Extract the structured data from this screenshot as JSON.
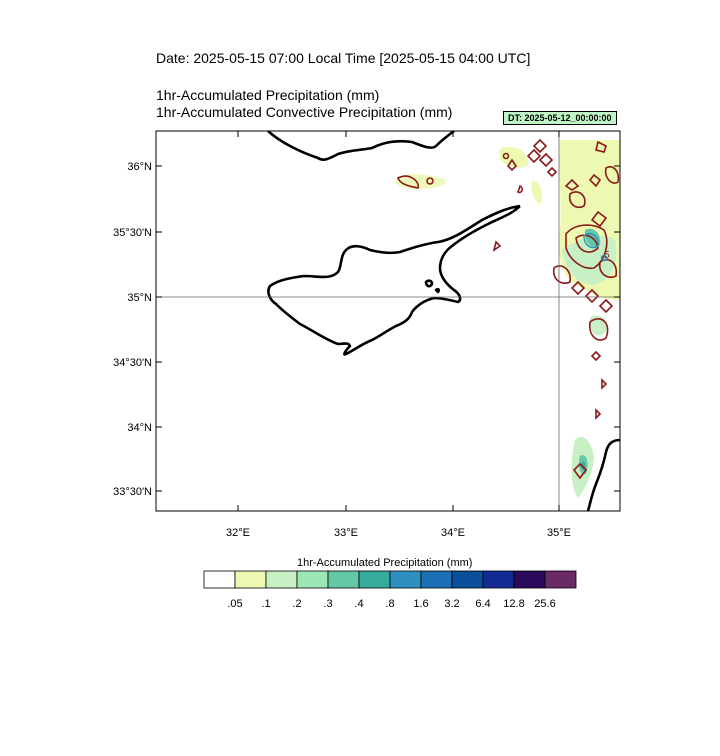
{
  "header": {
    "date_line": "Date: 2025-05-15  07:00 Local Time [2025-05-15  04:00 UTC]",
    "line1": "1hr-Accumulated Precipitation   (mm)",
    "line2": "1hr-Accumulated Convective Precipitation   (mm)"
  },
  "badge": {
    "dt": "DT: 2025-05-12_00:00:00"
  },
  "map": {
    "lat_labels": [
      "36°N",
      "35°30'N",
      "35°N",
      "34°30'N",
      "34°N",
      "33°30'N"
    ],
    "lon_labels": [
      "32°E",
      "33°E",
      "34°E",
      "35°E"
    ],
    "gridline_lat": "35°N",
    "gridline_lon": "35°E"
  },
  "colorbar": {
    "title": "1hr-Accumulated Precipitation  (mm)",
    "labels": [
      ".05",
      ".1",
      ".2",
      ".3",
      ".4",
      ".8",
      "1.6",
      "3.2",
      "6.4",
      "12.8",
      "25.6"
    ],
    "colors": [
      "#ffffff",
      "#edf8b1",
      "#c7f0c4",
      "#9ce8b5",
      "#63c8a6",
      "#36aa9d",
      "#2f8fbe",
      "#1a6fb5",
      "#0a4f9a",
      "#112a94",
      "#2a0a5a",
      "#6a2a66"
    ]
  },
  "legend_colors": {
    "precip_light": "#edf8b1",
    "precip_mid": "#9ce8b5",
    "precip_teal": "#36aa9d",
    "convective_contour": "#8b1a1a"
  }
}
